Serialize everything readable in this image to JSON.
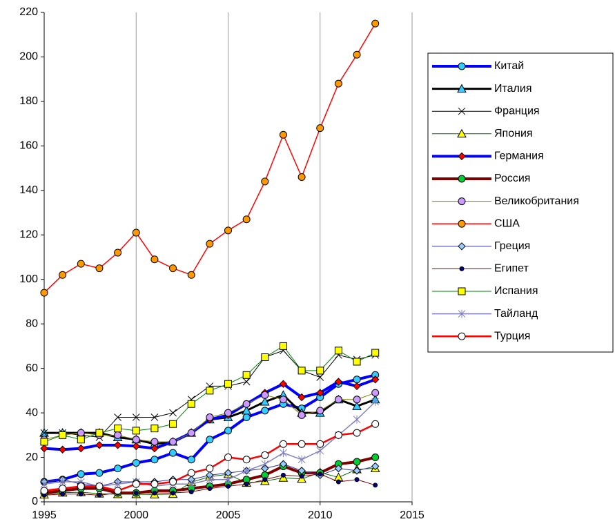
{
  "chart_data": {
    "type": "line",
    "x": [
      1995,
      1996,
      1997,
      1998,
      1999,
      2000,
      2001,
      2002,
      2003,
      2004,
      2005,
      2006,
      2007,
      2008,
      2009,
      2010,
      2011,
      2012,
      2013
    ],
    "xlim": [
      1995,
      2015
    ],
    "xticks": [
      1995,
      2000,
      2005,
      2010,
      2015
    ],
    "ylim": [
      0,
      220
    ],
    "yticks": [
      0,
      20,
      40,
      60,
      80,
      100,
      120,
      140,
      160,
      180,
      200,
      220
    ],
    "grid": "x",
    "legend": "right",
    "series": [
      {
        "name": "Китай",
        "color": "#0000ff",
        "line_width": 4,
        "marker": "circle",
        "marker_color": "#33ccff",
        "values": [
          9,
          10,
          12.5,
          13,
          15,
          17.5,
          19,
          22,
          19,
          28,
          32,
          38,
          41,
          44,
          42,
          47,
          53,
          55,
          57
        ]
      },
      {
        "name": "Италия",
        "color": "#000000",
        "line_width": 3,
        "marker": "triangle",
        "marker_color": "#33ccff",
        "values": [
          31,
          31,
          31,
          31,
          29,
          28,
          26,
          27,
          31,
          37,
          38,
          41,
          45,
          48,
          40,
          40,
          46,
          43,
          46
        ]
      },
      {
        "name": "Франция",
        "color": "#000000",
        "line_width": 1,
        "marker": "x",
        "marker_color": "#000000",
        "values": [
          31,
          31,
          30,
          29,
          38,
          38,
          38,
          40,
          46,
          52,
          52,
          54,
          65,
          68,
          59,
          56,
          66,
          64,
          66
        ]
      },
      {
        "name": "Япония",
        "color": "#006600",
        "line_width": 1,
        "marker": "triangle",
        "marker_color": "#ffff00",
        "values": [
          3.2,
          4.1,
          4.3,
          3.7,
          3.4,
          3.4,
          3.3,
          3.5,
          8.8,
          11.3,
          12.4,
          8.5,
          9.3,
          10.8,
          10.3,
          13.2,
          11,
          14.6,
          15.1
        ]
      },
      {
        "name": "Германия",
        "color": "#0000ff",
        "line_width": 4,
        "marker": "diamond",
        "marker_color": "#ff0000",
        "values": [
          24,
          23.5,
          24,
          25.5,
          25.5,
          25,
          24,
          27,
          31,
          37,
          39,
          44,
          49,
          53,
          47,
          49,
          54,
          52,
          55
        ]
      },
      {
        "name": "Россия",
        "color": "#800000",
        "line_width": 4,
        "marker": "circle",
        "marker_color": "#00cc33",
        "values": [
          4,
          5,
          6,
          6,
          4,
          4,
          5,
          5,
          6,
          7,
          8,
          10,
          12,
          16,
          13,
          13,
          17,
          18,
          20
        ]
      },
      {
        "name": "Великобритания",
        "color": "#808000",
        "line_width": 1,
        "marker": "circle",
        "marker_color": "#cc99ff",
        "values": [
          28,
          30,
          31,
          30,
          30,
          28,
          27,
          27,
          31,
          38,
          40,
          44,
          48,
          46,
          39,
          41,
          46,
          46,
          49
        ]
      },
      {
        "name": "США",
        "color": "#ff0000",
        "line_width": 1.5,
        "marker": "circle",
        "marker_color": "#ff9900",
        "values": [
          94,
          102,
          107,
          105,
          112,
          121,
          109,
          105,
          102,
          116,
          122,
          127,
          144,
          165,
          146,
          168,
          188,
          201,
          215
        ]
      },
      {
        "name": "Греция",
        "color": "#333399",
        "line_width": 1,
        "marker": "diamond",
        "marker_color": "#99ccff",
        "values": [
          9,
          10,
          8,
          7,
          9,
          9,
          9,
          10,
          10,
          12,
          13,
          14,
          15,
          17,
          14,
          12,
          15,
          14,
          16
        ]
      },
      {
        "name": "Египет",
        "color": "#800000",
        "line_width": 1,
        "marker": "dot",
        "marker_color": "#000080",
        "values": [
          3,
          3.5,
          3.5,
          3,
          4,
          4,
          4,
          4,
          4.5,
          6,
          7,
          8,
          10,
          12,
          11.5,
          12.5,
          9,
          10,
          7.5
        ]
      },
      {
        "name": "Испания",
        "color": "#008000",
        "line_width": 1,
        "marker": "square",
        "marker_color": "#ffff00",
        "values": [
          27,
          30,
          28,
          31,
          33,
          32,
          33,
          35,
          44,
          50,
          53,
          57,
          65,
          70,
          59,
          59,
          68,
          63,
          67
        ]
      },
      {
        "name": "Тайланд",
        "color": "#8080c0",
        "line_width": 1.5,
        "marker": "asterisk",
        "marker_color": "#8080c0",
        "values": [
          8,
          9,
          9,
          7,
          8,
          9,
          7,
          8,
          8,
          10,
          10,
          14,
          17,
          22,
          19,
          23,
          30,
          37,
          45
        ]
      },
      {
        "name": "Турция",
        "color": "#ff0000",
        "line_width": 2.5,
        "marker": "circle",
        "marker_color": "#ffffff",
        "values": [
          5,
          6,
          7,
          7,
          5,
          8,
          8,
          9,
          13,
          15,
          20,
          19,
          21,
          26,
          26,
          26,
          30,
          31,
          35
        ]
      }
    ]
  }
}
